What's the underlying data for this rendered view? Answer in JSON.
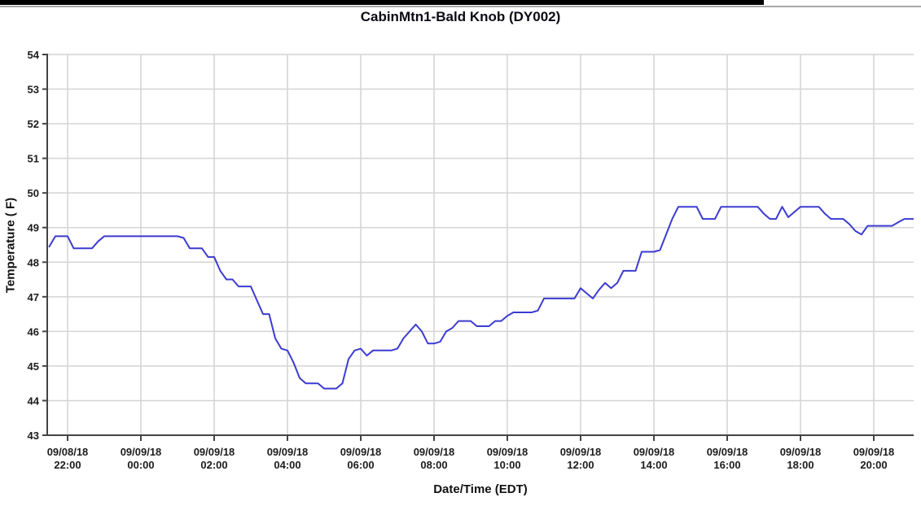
{
  "window": {
    "top_bar_color": "#000000",
    "rule_color": "#a9a9a9"
  },
  "chart_data": {
    "type": "line",
    "title": "CabinMtn1-Bald Knob (DY002)",
    "xlabel": "Date/Time (EDT)",
    "ylabel": "Temperature ( F)",
    "ylim": [
      43,
      54
    ],
    "y_ticks": [
      43,
      44,
      45,
      46,
      47,
      48,
      49,
      50,
      51,
      52,
      53,
      54
    ],
    "x_ticks": [
      {
        "date": "09/08/18",
        "time": "22:00"
      },
      {
        "date": "09/09/18",
        "time": "00:00"
      },
      {
        "date": "09/09/18",
        "time": "02:00"
      },
      {
        "date": "09/09/18",
        "time": "04:00"
      },
      {
        "date": "09/09/18",
        "time": "06:00"
      },
      {
        "date": "09/09/18",
        "time": "08:00"
      },
      {
        "date": "09/09/18",
        "time": "10:00"
      },
      {
        "date": "09/09/18",
        "time": "12:00"
      },
      {
        "date": "09/09/18",
        "time": "14:00"
      },
      {
        "date": "09/09/18",
        "time": "16:00"
      },
      {
        "date": "09/09/18",
        "time": "18:00"
      },
      {
        "date": "09/09/18",
        "time": "20:00"
      }
    ],
    "grid": true,
    "legend": "none",
    "line_color": "#3b3bd1",
    "grid_color": "#d4d4d4",
    "axis_color": "#444444",
    "series": [
      {
        "name": "Temperature (F)",
        "start_date": "09/08/18",
        "start_time": "21:30",
        "interval_minutes": 10,
        "values": [
          48.45,
          48.75,
          48.75,
          48.75,
          48.4,
          48.4,
          48.4,
          48.4,
          48.6,
          48.75,
          48.75,
          48.75,
          48.75,
          48.75,
          48.75,
          48.75,
          48.75,
          48.75,
          48.75,
          48.75,
          48.75,
          48.75,
          48.7,
          48.4,
          48.4,
          48.4,
          48.15,
          48.15,
          47.75,
          47.5,
          47.5,
          47.3,
          47.3,
          47.3,
          46.9,
          46.5,
          46.5,
          45.8,
          45.5,
          45.45,
          45.1,
          44.65,
          44.5,
          44.5,
          44.5,
          44.35,
          44.35,
          44.35,
          44.5,
          45.2,
          45.45,
          45.5,
          45.3,
          45.45,
          45.45,
          45.45,
          45.45,
          45.5,
          45.8,
          46.0,
          46.2,
          46.0,
          45.65,
          45.65,
          45.7,
          46.0,
          46.1,
          46.3,
          46.3,
          46.3,
          46.15,
          46.15,
          46.15,
          46.3,
          46.3,
          46.45,
          46.55,
          46.55,
          46.55,
          46.55,
          46.6,
          46.95,
          46.95,
          46.95,
          46.95,
          46.95,
          46.95,
          47.25,
          47.1,
          46.95,
          47.2,
          47.4,
          47.25,
          47.4,
          47.75,
          47.75,
          47.75,
          48.3,
          48.3,
          48.3,
          48.35,
          48.8,
          49.25,
          49.6,
          49.6,
          49.6,
          49.6,
          49.25,
          49.25,
          49.25,
          49.6,
          49.6,
          49.6,
          49.6,
          49.6,
          49.6,
          49.6,
          49.4,
          49.25,
          49.25,
          49.6,
          49.3,
          49.45,
          49.6,
          49.6,
          49.6,
          49.6,
          49.4,
          49.25,
          49.25,
          49.25,
          49.1,
          48.9,
          48.8,
          49.05,
          49.05,
          49.05,
          49.05,
          49.05,
          49.15,
          49.25,
          49.25,
          49.25
        ]
      }
    ]
  }
}
